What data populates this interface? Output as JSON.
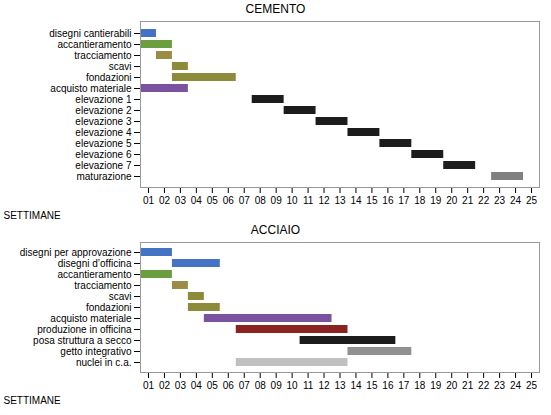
{
  "chart_data": [
    {
      "type": "gantt",
      "title": "CEMENTO",
      "xlabel": "SETTIMANE",
      "orientation": "horizontal",
      "categories": [
        "disegni cantierabili",
        "accantieramento",
        "tracciamento",
        "scavi",
        "fondazioni",
        "acquisto materiale",
        "elevazione 1",
        "elevazione 2",
        "elevazione 3",
        "elevazione 4",
        "elevazione 5",
        "elevazione 6",
        "elevazione 7",
        "maturazione"
      ],
      "starts": [
        1,
        1,
        2,
        3,
        3,
        1,
        8,
        10,
        12,
        14,
        16,
        18,
        20,
        23
      ],
      "values": [
        1,
        2,
        1,
        1,
        4,
        3,
        2,
        2,
        2,
        2,
        2,
        2,
        2,
        2
      ],
      "colors": [
        "#4472C4",
        "#6B9E3E",
        "#9B8B45",
        "#8B8B3A",
        "#8B8B3A",
        "#7B52A0",
        "#1C1C1C",
        "#1C1C1C",
        "#1C1C1C",
        "#1C1C1C",
        "#1C1C1C",
        "#1C1C1C",
        "#1C1C1C",
        "#808080"
      ],
      "xlim": [
        1,
        26
      ],
      "xticks": [
        {
          "value": 1.5,
          "label": "01"
        },
        {
          "value": 2.5,
          "label": "02"
        },
        {
          "value": 3.5,
          "label": "03"
        },
        {
          "value": 4.5,
          "label": "04"
        },
        {
          "value": 5.5,
          "label": "05"
        },
        {
          "value": 6.5,
          "label": "06"
        },
        {
          "value": 7.5,
          "label": "07"
        },
        {
          "value": 8.5,
          "label": "08"
        },
        {
          "value": 9.5,
          "label": "09"
        },
        {
          "value": 10.5,
          "label": "10"
        },
        {
          "value": 11.5,
          "label": "11"
        },
        {
          "value": 12.5,
          "label": "12"
        },
        {
          "value": 13.5,
          "label": "13"
        },
        {
          "value": 14.5,
          "label": "14"
        },
        {
          "value": 15.5,
          "label": "15"
        },
        {
          "value": 16.5,
          "label": "16"
        },
        {
          "value": 17.5,
          "label": "17"
        },
        {
          "value": 18.5,
          "label": "18"
        },
        {
          "value": 19.5,
          "label": "19"
        },
        {
          "value": 20.5,
          "label": "20"
        },
        {
          "value": 21.5,
          "label": "21"
        },
        {
          "value": 22.5,
          "label": "22"
        },
        {
          "value": 23.5,
          "label": "23"
        },
        {
          "value": 24.5,
          "label": "24"
        },
        {
          "value": 25.5,
          "label": "25"
        }
      ],
      "grid": false
    },
    {
      "type": "gantt",
      "title": "ACCIAIO",
      "xlabel": "SETTIMANE",
      "orientation": "horizontal",
      "categories": [
        "disegni per approvazione",
        "disegni d’officina",
        "accantieramento",
        "tracciamento",
        "scavi",
        "fondazioni",
        "acquisto materiale",
        "produzione in officina",
        "posa struttura a secco",
        "getto integrativo",
        "nuclei in c.a."
      ],
      "starts": [
        1,
        3,
        1,
        3,
        4,
        4,
        5,
        7,
        11,
        14,
        7
      ],
      "values": [
        2,
        3,
        2,
        1,
        1,
        2,
        8,
        7,
        6,
        4,
        7
      ],
      "colors": [
        "#4472C4",
        "#4472C4",
        "#6B9E3E",
        "#9B8B45",
        "#8B8B3A",
        "#8B8B3A",
        "#7B52A0",
        "#8B2222",
        "#1C1C1C",
        "#909090",
        "#C0C0C0"
      ],
      "xlim": [
        1,
        26
      ],
      "xticks": [
        {
          "value": 1.5,
          "label": "01"
        },
        {
          "value": 2.5,
          "label": "02"
        },
        {
          "value": 3.5,
          "label": "03"
        },
        {
          "value": 4.5,
          "label": "04"
        },
        {
          "value": 5.5,
          "label": "05"
        },
        {
          "value": 6.5,
          "label": "06"
        },
        {
          "value": 7.5,
          "label": "07"
        },
        {
          "value": 8.5,
          "label": "08"
        },
        {
          "value": 9.5,
          "label": "09"
        },
        {
          "value": 10.5,
          "label": "10"
        },
        {
          "value": 11.5,
          "label": "11"
        },
        {
          "value": 12.5,
          "label": "12"
        },
        {
          "value": 13.5,
          "label": "13"
        },
        {
          "value": 14.5,
          "label": "14"
        },
        {
          "value": 15.5,
          "label": "15"
        },
        {
          "value": 16.5,
          "label": "16"
        },
        {
          "value": 17.5,
          "label": "17"
        },
        {
          "value": 18.5,
          "label": "18"
        },
        {
          "value": 19.5,
          "label": "19"
        },
        {
          "value": 20.5,
          "label": "20"
        },
        {
          "value": 21.5,
          "label": "21"
        },
        {
          "value": 22.5,
          "label": "22"
        },
        {
          "value": 23.5,
          "label": "23"
        },
        {
          "value": 24.5,
          "label": "24"
        },
        {
          "value": 25.5,
          "label": "25"
        }
      ],
      "grid": false
    }
  ]
}
